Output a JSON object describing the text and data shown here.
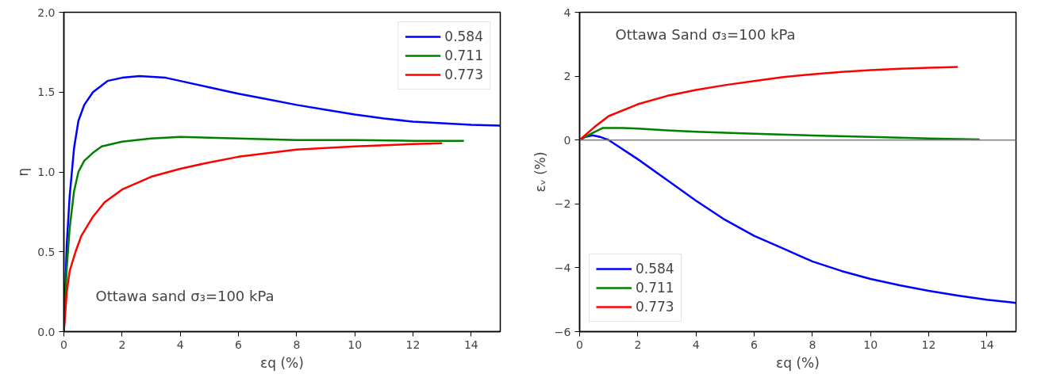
{
  "chart_data": [
    {
      "type": "line",
      "xlabel": "εq (%)",
      "ylabel": "η",
      "xlim": [
        0,
        15
      ],
      "ylim": [
        0,
        2
      ],
      "xticks": [
        0,
        2,
        4,
        6,
        8,
        10,
        12,
        14
      ],
      "yticks": [
        {
          "value": 0,
          "label": "0.0"
        },
        {
          "value": 0.5,
          "label": "0.5"
        },
        {
          "value": 1,
          "label": "1.0"
        },
        {
          "value": 1.5,
          "label": "1.5"
        },
        {
          "value": 2,
          "label": "2.0"
        }
      ],
      "grid": false,
      "legend": "top right",
      "annotations": [
        "Ottawa sand σ₃=100 kPa"
      ],
      "series": [
        {
          "name": "0.584",
          "color": "#0000ff",
          "x": [
            0,
            0.1,
            0.2,
            0.35,
            0.5,
            0.7,
            1,
            1.5,
            2,
            2.6,
            3.5,
            4,
            5,
            6,
            7,
            8,
            9,
            10,
            11,
            12,
            13,
            14,
            15
          ],
          "values": [
            0,
            0.55,
            0.85,
            1.15,
            1.32,
            1.42,
            1.5,
            1.57,
            1.59,
            1.6,
            1.59,
            1.57,
            1.53,
            1.49,
            1.455,
            1.42,
            1.39,
            1.36,
            1.335,
            1.315,
            1.305,
            1.295,
            1.29
          ]
        },
        {
          "name": "0.711",
          "color": "#008000",
          "x": [
            0,
            0.1,
            0.2,
            0.35,
            0.5,
            0.7,
            1,
            1.3,
            2,
            3,
            4,
            5,
            6,
            8,
            10,
            12,
            13.75
          ],
          "values": [
            0,
            0.4,
            0.65,
            0.88,
            1.0,
            1.07,
            1.12,
            1.16,
            1.19,
            1.21,
            1.22,
            1.215,
            1.21,
            1.2,
            1.2,
            1.195,
            1.195
          ]
        },
        {
          "name": "0.773",
          "color": "#ff0000",
          "x": [
            0,
            0.1,
            0.2,
            0.4,
            0.6,
            1,
            1.4,
            2,
            3,
            4,
            5,
            6,
            8,
            10,
            12,
            13
          ],
          "values": [
            0,
            0.25,
            0.38,
            0.5,
            0.6,
            0.72,
            0.81,
            0.89,
            0.97,
            1.02,
            1.06,
            1.095,
            1.14,
            1.16,
            1.175,
            1.18
          ]
        }
      ]
    },
    {
      "type": "line",
      "xlabel": "εq (%)",
      "ylabel": "εᵥ (%)",
      "xlim": [
        0,
        15
      ],
      "ylim": [
        -6,
        4
      ],
      "xticks": [
        0,
        2,
        4,
        6,
        8,
        10,
        12,
        14
      ],
      "yticks": [
        {
          "value": -6,
          "label": "−6"
        },
        {
          "value": -4,
          "label": "−4"
        },
        {
          "value": -2,
          "label": "−2"
        },
        0,
        2,
        4
      ],
      "grid": false,
      "legend": "bottom left",
      "annotations": [
        "Ottawa Sand σ₃=100 kPa"
      ],
      "ref_lines": [
        {
          "axis": "y",
          "value": 0,
          "color": "#808080"
        }
      ],
      "series": [
        {
          "name": "0.584",
          "color": "#0000ff",
          "x": [
            0,
            0.2,
            0.45,
            0.7,
            1,
            2,
            3,
            4,
            5,
            6,
            7,
            8,
            9,
            10,
            11,
            12,
            13,
            14,
            15
          ],
          "values": [
            0,
            0.1,
            0.15,
            0.1,
            0,
            -0.6,
            -1.25,
            -1.9,
            -2.5,
            -3,
            -3.4,
            -3.8,
            -4.1,
            -4.35,
            -4.55,
            -4.72,
            -4.87,
            -5.0,
            -5.1
          ]
        },
        {
          "name": "0.711",
          "color": "#008000",
          "x": [
            0,
            0.4,
            0.8,
            1.5,
            2,
            3,
            4,
            6,
            8,
            10,
            12,
            13.75
          ],
          "values": [
            0,
            0.2,
            0.38,
            0.38,
            0.36,
            0.3,
            0.26,
            0.2,
            0.14,
            0.1,
            0.05,
            0.02
          ]
        },
        {
          "name": "0.773",
          "color": "#ff0000",
          "x": [
            0,
            0.5,
            1,
            2,
            3,
            4,
            5,
            6,
            7,
            8,
            9,
            10,
            11,
            12,
            13
          ],
          "values": [
            0,
            0.4,
            0.75,
            1.12,
            1.38,
            1.57,
            1.72,
            1.85,
            1.97,
            2.06,
            2.13,
            2.19,
            2.23,
            2.26,
            2.29
          ]
        }
      ]
    }
  ]
}
